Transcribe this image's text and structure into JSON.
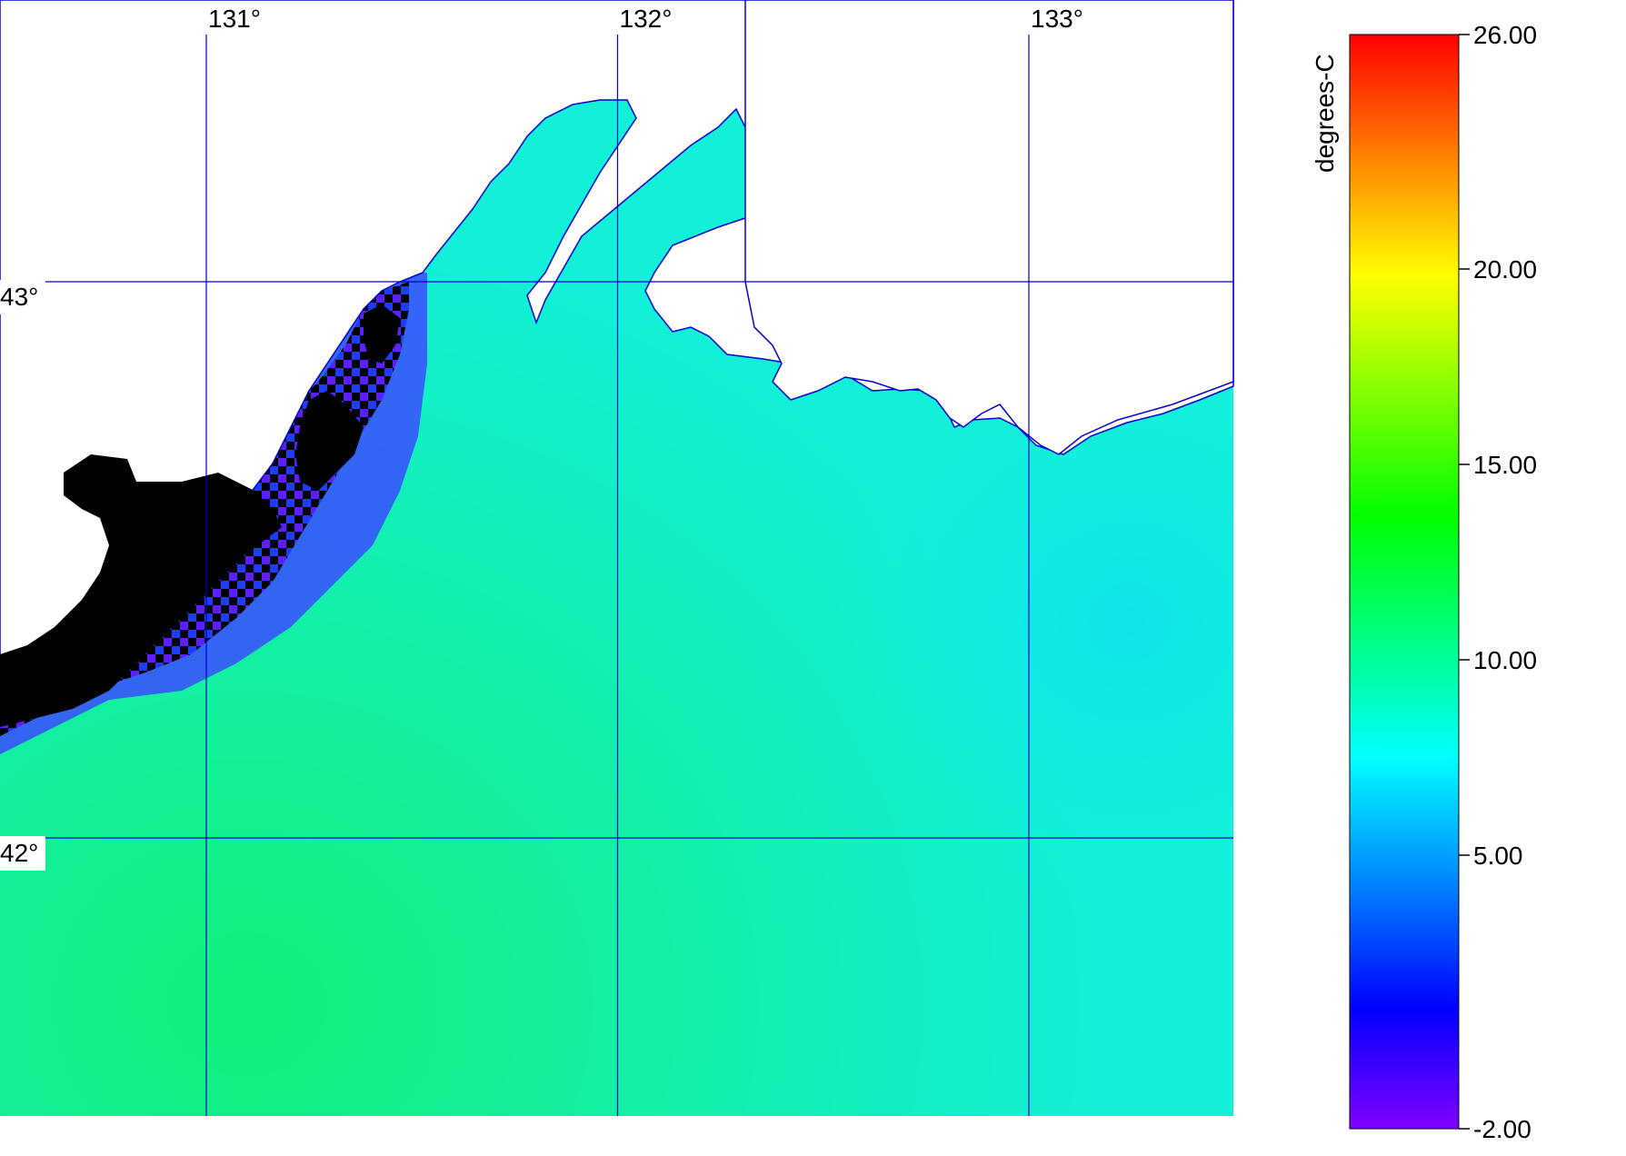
{
  "map": {
    "longitude_labels": [
      "131°",
      "132°",
      "133°"
    ],
    "longitudes": [
      131,
      132,
      133
    ],
    "latitude_labels": [
      "43°",
      "42°"
    ],
    "latitudes": [
      43,
      42
    ],
    "gridline_color": "#0000cc",
    "land_color": "#ffffff",
    "coastline_color": "#0000cc",
    "cloud_mask_color": "#000000"
  },
  "colorbar": {
    "title": "degrees-C",
    "min": -2.0,
    "max": 26.0,
    "tick_labels": [
      "26.00",
      "20.00",
      "15.00",
      "10.00",
      "5.00",
      "-2.00"
    ],
    "tick_values": [
      26,
      20,
      15,
      10,
      5,
      -2
    ],
    "colors": [
      "#8000ff",
      "#0000ff",
      "#0080ff",
      "#00ffff",
      "#00ff80",
      "#00ff00",
      "#80ff00",
      "#ffff00",
      "#ff8000",
      "#ff0000"
    ]
  }
}
